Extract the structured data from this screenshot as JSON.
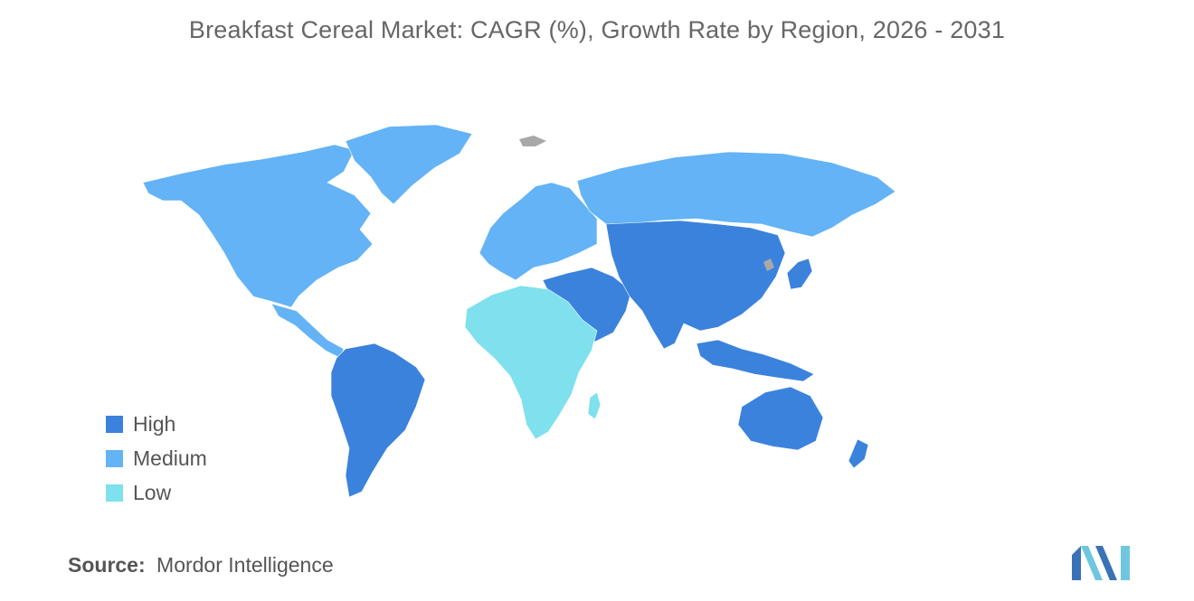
{
  "title": "Breakfast Cereal Market: CAGR (%), Growth Rate by Region, 2026 - 2031",
  "colors": {
    "high": "#3b82dd",
    "medium": "#63b3f6",
    "low": "#7fe0ee",
    "no_data": "#a8a8a8",
    "logo_dark": "#3a72b8",
    "logo_light": "#6fc7df"
  },
  "legend": [
    {
      "label": "High",
      "color": "#3b82dd"
    },
    {
      "label": "Medium",
      "color": "#63b3f6"
    },
    {
      "label": "Low",
      "color": "#7fe0ee"
    }
  ],
  "regions": {
    "North America": "Medium",
    "Greenland": "Medium",
    "Europe": "Medium",
    "Russia": "Medium",
    "Central America and Caribbean": "Medium",
    "South America": "High",
    "Middle East": "High",
    "Asia": "High",
    "Southeast Asia": "High",
    "Australia and Oceania": "High",
    "Africa": "Low"
  },
  "source": {
    "label": "Source:",
    "value": "Mordor Intelligence"
  }
}
